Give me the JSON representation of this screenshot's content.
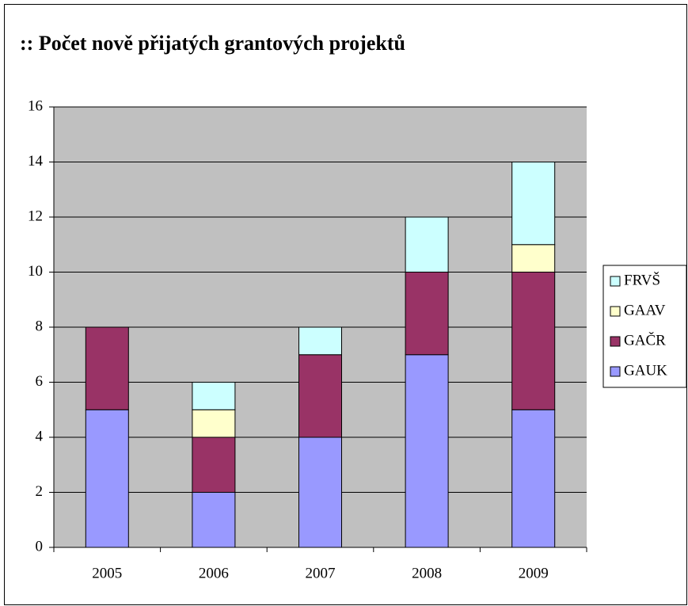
{
  "chart_data": {
    "type": "stacked_bar",
    "title": ":: Počet nově přijatých grantových projektů",
    "categories": [
      "2005",
      "2006",
      "2007",
      "2008",
      "2009"
    ],
    "series": [
      {
        "name": "GAUK",
        "color": "#9999ff",
        "values": [
          5,
          2,
          4,
          7,
          5
        ]
      },
      {
        "name": "GAČR",
        "color": "#993366",
        "values": [
          3,
          2,
          3,
          3,
          5
        ]
      },
      {
        "name": "GAAV",
        "color": "#ffffcc",
        "values": [
          0,
          1,
          0,
          0,
          1
        ]
      },
      {
        "name": "FRVŠ",
        "color": "#ccffff",
        "values": [
          0,
          1,
          1,
          2,
          3
        ]
      }
    ],
    "ylim": [
      0,
      16
    ],
    "yticks": [
      0,
      2,
      4,
      6,
      8,
      10,
      12,
      14,
      16
    ],
    "grid": true,
    "legend": "right"
  }
}
